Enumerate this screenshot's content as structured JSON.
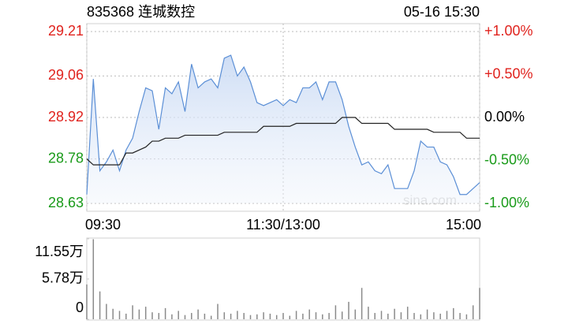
{
  "chart_data": [
    {
      "type": "line",
      "title": "835368 连城数控",
      "date": "05-16 15:30",
      "watermark": "sina.com",
      "x": [
        0,
        4,
        8,
        12,
        16,
        20,
        24,
        28,
        32,
        36,
        40,
        44,
        48,
        52,
        56,
        60,
        64,
        68,
        72,
        76,
        80,
        84,
        88,
        92,
        96,
        100,
        104,
        108,
        112,
        116,
        120,
        124,
        128,
        132,
        136,
        140,
        144,
        148,
        152,
        156,
        160,
        164,
        168,
        172,
        176,
        180,
        184,
        188,
        192,
        196,
        200,
        204,
        208,
        212,
        216,
        220,
        224,
        228,
        232,
        236,
        240
      ],
      "xlim": [
        0,
        240
      ],
      "xticks": [
        {
          "value": 0,
          "label": "09:30"
        },
        {
          "value": 120,
          "label": "11:30/13:00"
        },
        {
          "value": 240,
          "label": "15:00"
        }
      ],
      "ylim": [
        28.63,
        29.21
      ],
      "yticks": [
        {
          "value": 28.63,
          "label": "28.63"
        },
        {
          "value": 28.78,
          "label": "28.78"
        },
        {
          "value": 28.92,
          "label": "28.92"
        },
        {
          "value": 29.06,
          "label": "29.06"
        },
        {
          "value": 29.21,
          "label": "29.21"
        }
      ],
      "y2lim": [
        -1,
        1
      ],
      "y2ticks": [
        {
          "value": -1,
          "label": "-1.00%"
        },
        {
          "value": -0.5,
          "label": "-0.50%"
        },
        {
          "value": 0,
          "label": "0.00%"
        },
        {
          "value": 0.5,
          "label": "+0.50%"
        },
        {
          "value": 1,
          "label": "+1.00%"
        }
      ],
      "up_color": "#e0231e",
      "down_color": "#1a9b1a",
      "flat_color": "#000000",
      "grid": true,
      "series": [
        {
          "name": "price",
          "color": "#5b8fd6",
          "values": [
            28.66,
            29.05,
            28.74,
            28.77,
            28.81,
            28.74,
            28.81,
            28.85,
            28.94,
            29.02,
            29.01,
            28.88,
            29.02,
            29.0,
            29.04,
            28.94,
            29.1,
            29.02,
            29.04,
            29.05,
            29.02,
            29.12,
            29.13,
            29.06,
            29.09,
            29.04,
            28.97,
            28.96,
            28.97,
            28.98,
            28.96,
            28.98,
            28.97,
            29.02,
            29.02,
            29.04,
            28.98,
            29.04,
            29.04,
            28.98,
            28.89,
            28.82,
            28.76,
            28.77,
            28.74,
            28.73,
            28.76,
            28.68,
            28.68,
            28.68,
            28.74,
            28.84,
            28.82,
            28.82,
            28.77,
            28.76,
            28.72,
            28.66,
            28.66,
            28.68,
            28.7
          ]
        },
        {
          "name": "average",
          "color": "#222222",
          "values": [
            28.78,
            28.76,
            28.76,
            28.76,
            28.76,
            28.76,
            28.8,
            28.8,
            28.81,
            28.82,
            28.84,
            28.84,
            28.85,
            28.85,
            28.85,
            28.86,
            28.86,
            28.86,
            28.86,
            28.86,
            28.86,
            28.87,
            28.87,
            28.87,
            28.87,
            28.87,
            28.87,
            28.89,
            28.89,
            28.89,
            28.89,
            28.89,
            28.9,
            28.9,
            28.9,
            28.9,
            28.9,
            28.9,
            28.9,
            28.92,
            28.92,
            28.92,
            28.9,
            28.9,
            28.9,
            28.9,
            28.9,
            28.88,
            28.88,
            28.88,
            28.88,
            28.88,
            28.88,
            28.87,
            28.87,
            28.87,
            28.87,
            28.87,
            28.85,
            28.85,
            28.85
          ]
        }
      ]
    },
    {
      "type": "bar",
      "x": [
        0,
        4,
        8,
        12,
        16,
        20,
        24,
        28,
        32,
        36,
        40,
        44,
        48,
        52,
        56,
        60,
        64,
        68,
        72,
        76,
        80,
        84,
        88,
        92,
        96,
        100,
        104,
        108,
        112,
        116,
        120,
        124,
        128,
        132,
        136,
        140,
        144,
        148,
        152,
        156,
        160,
        164,
        168,
        172,
        176,
        180,
        184,
        188,
        192,
        196,
        200,
        204,
        208,
        212,
        216,
        220,
        224,
        228,
        232,
        236,
        240
      ],
      "xlim": [
        0,
        240
      ],
      "ylim": [
        0,
        115500
      ],
      "yticks": [
        0,
        {
          "value": 57800,
          "label": "5.78万"
        },
        {
          "value": 115500,
          "label": "11.55万"
        }
      ],
      "color": "#8a8a8a",
      "values": [
        50000,
        115000,
        40000,
        22000,
        15000,
        12000,
        8000,
        20000,
        14000,
        18000,
        10000,
        9000,
        16000,
        7000,
        12000,
        6000,
        9000,
        14000,
        8000,
        5000,
        22000,
        10000,
        8000,
        12000,
        9000,
        6000,
        7000,
        10000,
        8000,
        6000,
        9000,
        5000,
        12000,
        8000,
        14000,
        10000,
        7000,
        9000,
        20000,
        11000,
        25000,
        14000,
        45000,
        18000,
        9000,
        12000,
        8000,
        15000,
        10000,
        18000,
        9000,
        7000,
        14000,
        10000,
        8000,
        12000,
        16000,
        9000,
        7000,
        20000,
        45000
      ]
    }
  ]
}
